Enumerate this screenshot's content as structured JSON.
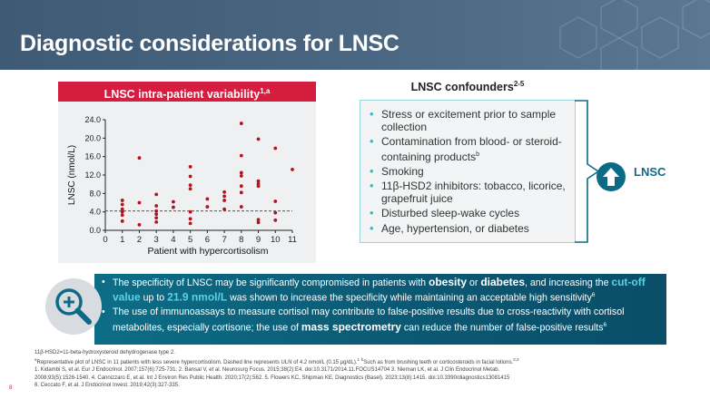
{
  "slide": {
    "title": "Diagnostic considerations for LNSC",
    "page_number": "8"
  },
  "chart_panel": {
    "title_text": "LNSC intra-patient variability",
    "title_sup": "1,a"
  },
  "chart_data": {
    "type": "scatter",
    "title": "LNSC intra-patient variability",
    "xlabel": "Patient with hypercortisolism",
    "ylabel": "LNSC (nmol/L)",
    "xlim": [
      0,
      11
    ],
    "ylim": [
      0,
      24
    ],
    "xticks": [
      "0",
      "1",
      "2",
      "3",
      "4",
      "5",
      "6",
      "7",
      "8",
      "9",
      "10",
      "11"
    ],
    "yticks": [
      "0.0",
      "4.0",
      "8.0",
      "12.0",
      "16.0",
      "20.0",
      "24.0"
    ],
    "reference_line": {
      "y": 4.2,
      "style": "dashed",
      "label": "ULN"
    },
    "points": [
      {
        "x": 1,
        "y": 2.0
      },
      {
        "x": 1,
        "y": 3.3
      },
      {
        "x": 1,
        "y": 4.0
      },
      {
        "x": 1,
        "y": 4.6
      },
      {
        "x": 1,
        "y": 5.6
      },
      {
        "x": 1,
        "y": 6.5
      },
      {
        "x": 2,
        "y": 1.2
      },
      {
        "x": 2,
        "y": 6.0
      },
      {
        "x": 2,
        "y": 15.7
      },
      {
        "x": 3,
        "y": 1.8
      },
      {
        "x": 3,
        "y": 2.7
      },
      {
        "x": 3,
        "y": 3.5
      },
      {
        "x": 3,
        "y": 4.2
      },
      {
        "x": 3,
        "y": 5.3
      },
      {
        "x": 3,
        "y": 7.8
      },
      {
        "x": 4,
        "y": 5.0
      },
      {
        "x": 4,
        "y": 6.2
      },
      {
        "x": 5,
        "y": 1.5
      },
      {
        "x": 5,
        "y": 2.5
      },
      {
        "x": 5,
        "y": 4.0
      },
      {
        "x": 5,
        "y": 9.0
      },
      {
        "x": 5,
        "y": 9.8
      },
      {
        "x": 5,
        "y": 11.7
      },
      {
        "x": 5,
        "y": 13.8
      },
      {
        "x": 6,
        "y": 5.1
      },
      {
        "x": 6,
        "y": 6.8
      },
      {
        "x": 7,
        "y": 4.6
      },
      {
        "x": 7,
        "y": 6.5
      },
      {
        "x": 7,
        "y": 7.4
      },
      {
        "x": 7,
        "y": 8.3
      },
      {
        "x": 8,
        "y": 5.1
      },
      {
        "x": 8,
        "y": 8.2
      },
      {
        "x": 8,
        "y": 9.6
      },
      {
        "x": 8,
        "y": 11.8
      },
      {
        "x": 8,
        "y": 12.5
      },
      {
        "x": 8,
        "y": 16.2
      },
      {
        "x": 8,
        "y": 23.2
      },
      {
        "x": 9,
        "y": 1.7
      },
      {
        "x": 9,
        "y": 2.3
      },
      {
        "x": 9,
        "y": 9.6
      },
      {
        "x": 9,
        "y": 10.1
      },
      {
        "x": 9,
        "y": 10.7
      },
      {
        "x": 9,
        "y": 19.8
      },
      {
        "x": 10,
        "y": 2.2
      },
      {
        "x": 10,
        "y": 3.8
      },
      {
        "x": 10,
        "y": 6.3
      },
      {
        "x": 10,
        "y": 17.8
      },
      {
        "x": 11,
        "y": 13.2
      }
    ],
    "colors": {
      "points": "#b5121b",
      "line": "#555555"
    }
  },
  "confounders": {
    "title_text": "LNSC confounders",
    "title_sup": "2-5",
    "items": [
      {
        "text": "Stress or excitement prior to sample collection",
        "sup": ""
      },
      {
        "text": "Contamination from blood- or steroid-containing products",
        "sup": "b"
      },
      {
        "text": "Smoking",
        "sup": ""
      },
      {
        "text": "11β-HSD2 inhibitors: tobacco, licorice, grapefruit juice",
        "sup": ""
      },
      {
        "text": "Disturbed sleep-wake cycles",
        "sup": ""
      },
      {
        "text": "Age, hypertension, or diabetes",
        "sup": ""
      }
    ],
    "result_icon": "up-arrow-icon",
    "result_label": "LNSC"
  },
  "info": {
    "icon": "magnifier-plus-icon",
    "b1_pre": "The specificity of LNSC may be significantly compromised in patients with ",
    "b1_obesity": "obesity",
    "b1_or": " or ",
    "b1_diabetes": "diabetes",
    "b1_mid": ", and increasing the ",
    "b1_cutoff": "cut-off value",
    "b1_upto": " up to ",
    "b1_value": "21.9 nmol/L",
    "b1_post": " was shown to increase the specificity while maintaining an acceptable high sensitivity",
    "b1_sup": "6",
    "b2_pre": "The use of immunoassays to measure cortisol may contribute to false-positive results due to cross-reactivity with cortisol metabolites, especially cortisone; the use of ",
    "b2_ms": "mass spectrometry",
    "b2_post": " can reduce the number of false-positive results",
    "b2_sup": "6"
  },
  "refs": {
    "abbrev": "11β-HSD2=11-beta-hydroxysteroid dehydrogenase type 2.",
    "note_a_mark": "a",
    "note_a": "Representative plot of LNSC in 11 patients with less severe hypercortisolism. Dashed line represents ULN of 4.2 nmol/L (0.15 µg/dL).",
    "note_a_cite": "1",
    "note_b_mark": "b",
    "note_b": "Such as from brushing teeth or corticosteroids in facial lotions.",
    "note_b_cite": "2,3",
    "line3": "1. Kidambi S, et al. Eur J Endocrinol. 2007;157(6):725-731. 2. Bansal V, et al. Neurosurg Focus. 2015;38(2):E4. doi:10.3171/2014.11.FOCUS14704 3. Nieman LK, et al. J Clin Endocrinol Metab.",
    "line4": "2008;93(5):1526-1540. 4. Cannizzaro E, et al. Int J Environ Res Public Health. 2020;17(2):562. 5. Flowers KC, Shipman KE. Diagnostics (Basel). 2023;13(8):1415. doi:10.3390/diagnostics13081415",
    "line5": "6. Ceccato F, et al. J Endocrinol Invest. 2019;42(3):327-335."
  }
}
